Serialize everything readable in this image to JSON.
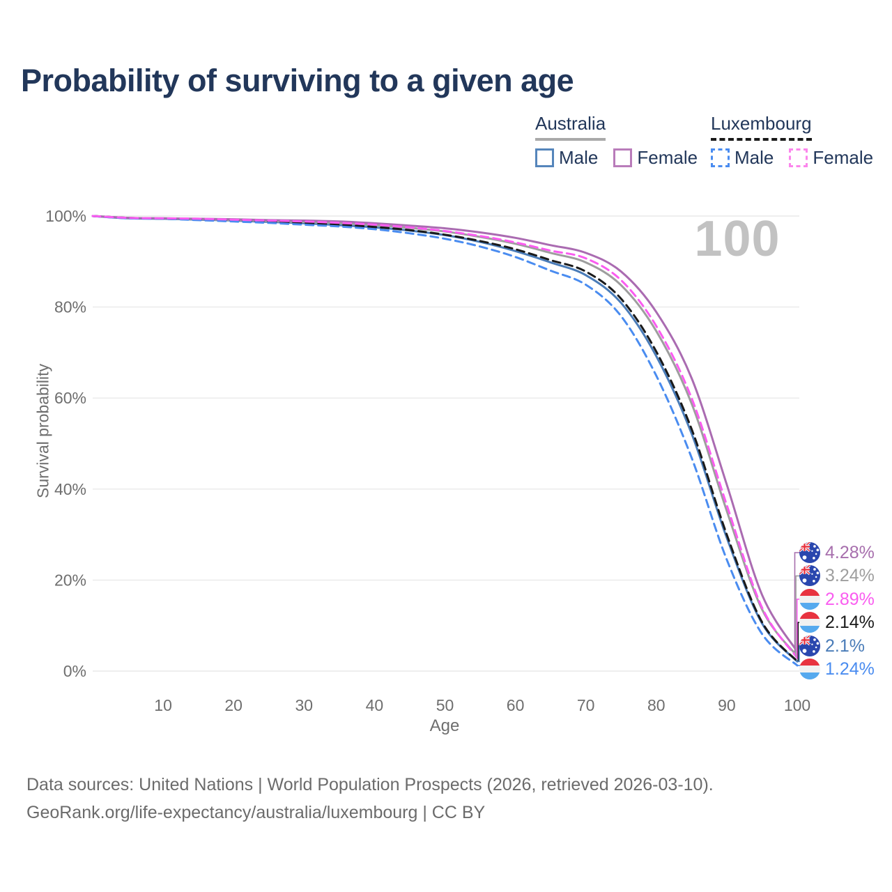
{
  "title": "Probability of surviving to a given age",
  "watermark": "100",
  "legend": {
    "groups": [
      {
        "label": "Australia",
        "line_style": "solid",
        "underline_color": "#a9a9a9",
        "items": [
          {
            "label": "Male",
            "color": "#5585bb",
            "dashed": false
          },
          {
            "label": "Female",
            "color": "#b97cba",
            "dashed": false
          }
        ]
      },
      {
        "label": "Luxembourg",
        "line_style": "dashed",
        "underline_color": "#1a1a1a",
        "items": [
          {
            "label": "Male",
            "color": "#4a8cf0",
            "dashed": true
          },
          {
            "label": "Female",
            "color": "#fb86ec",
            "dashed": true
          }
        ]
      }
    ]
  },
  "chart_data": {
    "type": "line",
    "xlabel": "Age",
    "ylabel": "Survival probability",
    "xlim": [
      0,
      100
    ],
    "ylim": [
      0,
      100
    ],
    "grid": "horizontal",
    "x_ticks": [
      10,
      20,
      30,
      40,
      50,
      60,
      70,
      80,
      90,
      100
    ],
    "y_ticks": [
      {
        "label": "100%",
        "value": 100
      },
      {
        "label": "80%",
        "value": 80
      },
      {
        "label": "60%",
        "value": 60
      },
      {
        "label": "40%",
        "value": 40
      },
      {
        "label": "20%",
        "value": 20
      },
      {
        "label": "0%",
        "value": 0
      }
    ],
    "ages": [
      0,
      5,
      10,
      15,
      20,
      25,
      30,
      35,
      40,
      45,
      50,
      55,
      60,
      65,
      70,
      75,
      80,
      85,
      90,
      95,
      100
    ],
    "series": [
      {
        "id": "au-male",
        "name": "Australia Male",
        "country": "Australia",
        "sex": "Male",
        "color": "#4a7cb8",
        "dash": "solid",
        "values": [
          100,
          99.5,
          99.4,
          99.2,
          99.0,
          98.7,
          98.4,
          98.0,
          97.5,
          96.8,
          95.8,
          94.3,
          92.3,
          89.8,
          87.0,
          80.9,
          69.2,
          52.2,
          29.3,
          10.5,
          2.1
        ],
        "end_label": "2.1%"
      },
      {
        "id": "au-all",
        "name": "Australia",
        "country": "Australia",
        "sex": "Both",
        "color": "#9e9e9e",
        "dash": "solid",
        "values": [
          100,
          99.6,
          99.5,
          99.3,
          99.1,
          98.9,
          98.7,
          98.4,
          98.0,
          97.4,
          96.6,
          95.4,
          93.9,
          91.9,
          89.8,
          84.8,
          74.7,
          58.8,
          35.2,
          13.6,
          3.24
        ],
        "end_label": "3.24%"
      },
      {
        "id": "au-female",
        "name": "Australia Female",
        "country": "Australia",
        "sex": "Female",
        "color": "#aa6bb1",
        "dash": "solid",
        "values": [
          100,
          99.6,
          99.5,
          99.4,
          99.3,
          99.1,
          99.0,
          98.8,
          98.4,
          97.9,
          97.3,
          96.4,
          95.2,
          93.6,
          91.9,
          87.8,
          78.9,
          64.4,
          41.0,
          16.8,
          4.28
        ],
        "end_label": "4.28%"
      },
      {
        "id": "lu-all",
        "name": "Luxembourg",
        "country": "Luxembourg",
        "sex": "Both",
        "color": "#1a1a1a",
        "dash": "dashed",
        "values": [
          100,
          99.6,
          99.4,
          99.2,
          99.0,
          98.8,
          98.5,
          98.1,
          97.6,
          96.9,
          95.9,
          94.5,
          92.7,
          90.3,
          87.8,
          81.8,
          70.2,
          53.2,
          30.0,
          10.8,
          2.14
        ],
        "end_label": "2.14%"
      },
      {
        "id": "lu-male",
        "name": "Luxembourg Male",
        "country": "Luxembourg",
        "sex": "Male",
        "color": "#4a8cf0",
        "dash": "dashed",
        "values": [
          100,
          99.5,
          99.4,
          99.1,
          98.8,
          98.5,
          98.1,
          97.7,
          97.1,
          96.2,
          95.0,
          93.3,
          91.0,
          88.0,
          84.9,
          78.0,
          64.9,
          46.9,
          24.5,
          8.2,
          1.24
        ],
        "end_label": "1.24%"
      },
      {
        "id": "lu-female",
        "name": "Luxembourg Female",
        "country": "Luxembourg",
        "sex": "Female",
        "color": "#fa5cf0",
        "dash": "dashed",
        "values": [
          100,
          99.6,
          99.5,
          99.4,
          99.2,
          99.0,
          98.8,
          98.5,
          98.1,
          97.5,
          96.7,
          95.6,
          94.2,
          92.4,
          90.7,
          85.9,
          75.8,
          60.0,
          36.5,
          14.0,
          2.89
        ],
        "end_label": "2.89%"
      }
    ]
  },
  "end_labels": [
    {
      "value": "4.28%",
      "flag": "australia",
      "flag_ref": "#flag-au",
      "color": "#a76fad",
      "series": "au-female"
    },
    {
      "value": "3.24%",
      "flag": "australia",
      "flag_ref": "#flag-au",
      "color": "#9e9e9e",
      "series": "au-all"
    },
    {
      "value": "2.89%",
      "flag": "luxembourg",
      "flag_ref": "#flag-lu",
      "color": "#fa5cf0",
      "series": "lu-female"
    },
    {
      "value": "2.14%",
      "flag": "luxembourg",
      "flag_ref": "#flag-lu",
      "color": "#1a1a1a",
      "series": "lu-all"
    },
    {
      "value": "2.1%",
      "flag": "australia",
      "flag_ref": "#flag-au",
      "color": "#4a7cb8",
      "series": "au-male"
    },
    {
      "value": "1.24%",
      "flag": "luxembourg",
      "flag_ref": "#flag-lu",
      "color": "#4a8cf0",
      "series": "lu-male"
    }
  ],
  "footer": {
    "line1": "Data sources: United Nations | World Population Prospects (2026, retrieved 2026-03-10).",
    "line2": "GeoRank.org/life-expectancy/australia/luxembourg | CC BY"
  }
}
